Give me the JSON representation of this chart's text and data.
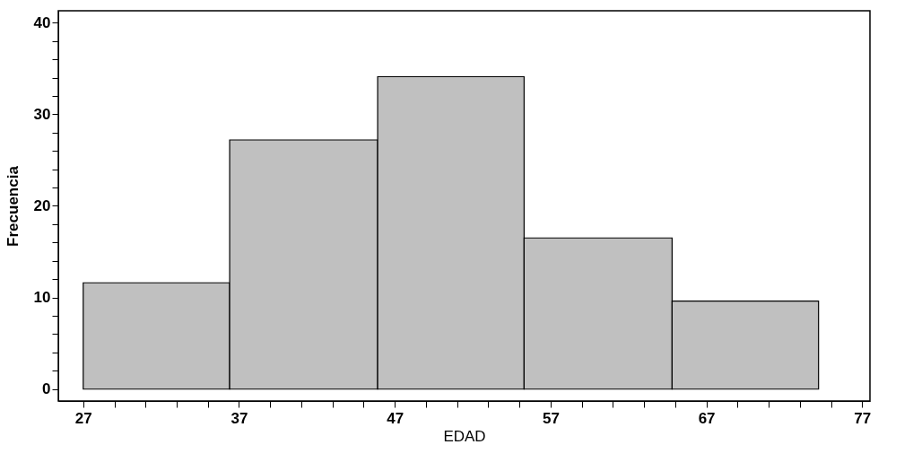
{
  "chart_data": {
    "type": "histogram",
    "xlabel": "EDAD",
    "ylabel": "Frecuencia",
    "bins": [
      27,
      36.4,
      45.9,
      55.3,
      64.8,
      74.2
    ],
    "values": [
      11.6,
      27.2,
      34.1,
      16.5,
      9.6
    ],
    "color": "#c0c0c0",
    "xlim": [
      25.4,
      77.5
    ],
    "ylim": [
      -1.3,
      41.3
    ],
    "xticks": [
      27,
      {
        "value": 29,
        "label": null
      },
      {
        "value": 31,
        "label": null
      },
      {
        "value": 33,
        "label": null
      },
      {
        "value": 35,
        "label": null
      },
      37,
      {
        "value": 39,
        "label": null
      },
      {
        "value": 41,
        "label": null
      },
      {
        "value": 43,
        "label": null
      },
      {
        "value": 45,
        "label": null
      },
      47,
      {
        "value": 49,
        "label": null
      },
      {
        "value": 51,
        "label": null
      },
      {
        "value": 53,
        "label": null
      },
      {
        "value": 55,
        "label": null
      },
      57,
      {
        "value": 59,
        "label": null
      },
      {
        "value": 61,
        "label": null
      },
      {
        "value": 63,
        "label": null
      },
      {
        "value": 65,
        "label": null
      },
      67,
      {
        "value": 69,
        "label": null
      },
      {
        "value": 71,
        "label": null
      },
      {
        "value": 73,
        "label": null
      },
      {
        "value": 75,
        "label": null
      },
      77
    ],
    "yticks": [
      0,
      {
        "value": 2,
        "label": null
      },
      {
        "value": 4,
        "label": null
      },
      {
        "value": 6,
        "label": null
      },
      {
        "value": 8,
        "label": null
      },
      10,
      {
        "value": 12,
        "label": null
      },
      {
        "value": 14,
        "label": null
      },
      {
        "value": 16,
        "label": null
      },
      {
        "value": 18,
        "label": null
      },
      20,
      {
        "value": 22,
        "label": null
      },
      {
        "value": 24,
        "label": null
      },
      {
        "value": 26,
        "label": null
      },
      {
        "value": 28,
        "label": null
      },
      30,
      {
        "value": 32,
        "label": null
      },
      {
        "value": 34,
        "label": null
      },
      {
        "value": 36,
        "label": null
      },
      {
        "value": 38,
        "label": null
      },
      40
    ],
    "grid": false
  }
}
